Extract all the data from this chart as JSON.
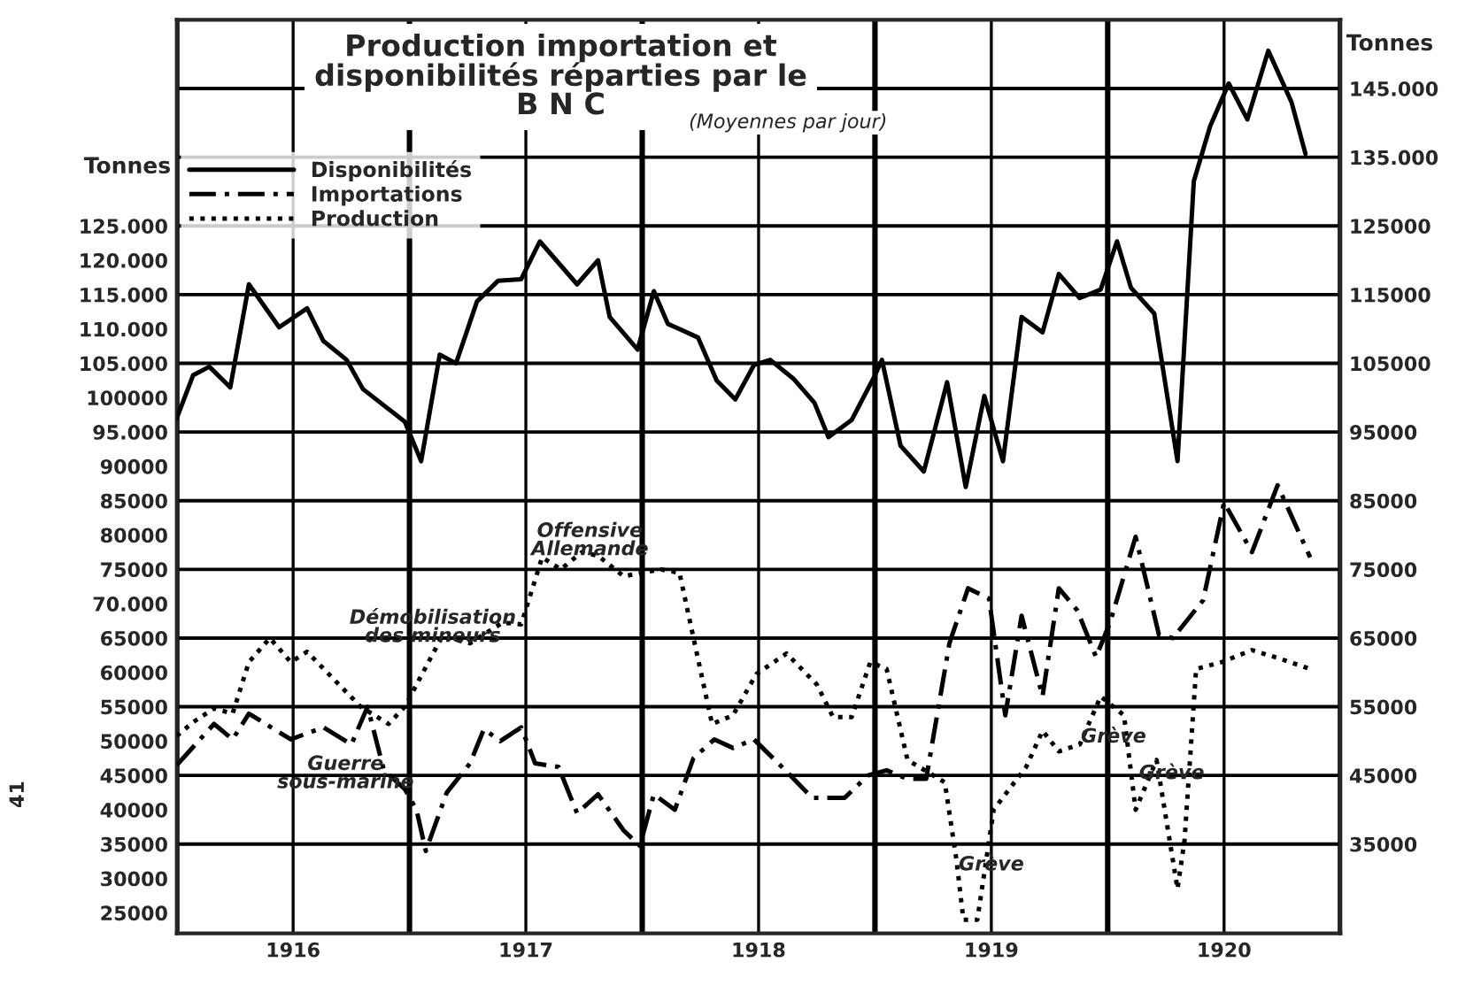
{
  "chart_data": {
    "type": "line",
    "title": "Production importation et\ndisponibilités réparties par le\nB N C",
    "subtitle": "(Moyennes par jour)",
    "ylabel": "Tonnes",
    "y2label": "Tonnes",
    "series": [
      {
        "name": "Disponibilités",
        "color": "#000000",
        "line_style": "solid",
        "x": [
          1916.0,
          1916.07,
          1916.14,
          1916.23,
          1916.31,
          1916.44,
          1916.56,
          1916.63,
          1916.73,
          1916.8,
          1916.98,
          1917.05,
          1917.13,
          1917.2,
          1917.29,
          1917.38,
          1917.48,
          1917.56,
          1917.72,
          1917.81,
          1917.86,
          1917.98,
          1918.05,
          1918.11,
          1918.24,
          1918.32,
          1918.4,
          1918.48,
          1918.55,
          1918.65,
          1918.74,
          1918.8,
          1918.9,
          1919.0,
          1919.03,
          1919.11,
          1919.21,
          1919.31,
          1919.39,
          1919.47,
          1919.55,
          1919.63,
          1919.72,
          1919.79,
          1919.88,
          1919.97,
          1920.04,
          1920.1,
          1920.2,
          1920.3,
          1920.37,
          1920.44,
          1920.52,
          1920.6,
          1920.69,
          1920.79,
          1920.85
        ],
        "values": [
          97000,
          103250,
          104500,
          101500,
          116500,
          110250,
          113000,
          108250,
          105500,
          101250,
          96500,
          90750,
          106250,
          105000,
          114000,
          117000,
          117250,
          122750,
          116500,
          120000,
          111750,
          107000,
          115500,
          110750,
          108750,
          102500,
          99750,
          104750,
          105500,
          102750,
          99250,
          94250,
          96750,
          103250,
          105500,
          93000,
          89250,
          102250,
          87000,
          100250,
          90750,
          111750,
          109500,
          118000,
          114500,
          115750,
          122750,
          116000,
          112250,
          90750,
          131500,
          139500,
          145750,
          140500,
          150500,
          143000,
          135500
        ]
      },
      {
        "name": "Importations",
        "color": "#000000",
        "line_style": "dashed",
        "x": [
          1916.0,
          1916.16,
          1916.24,
          1916.31,
          1916.49,
          1916.63,
          1916.75,
          1916.82,
          1916.89,
          1916.98,
          1917.03,
          1917.07,
          1917.16,
          1917.26,
          1917.32,
          1917.39,
          1917.48,
          1917.54,
          1917.64,
          1917.72,
          1917.81,
          1917.92,
          1917.99,
          1918.05,
          1918.14,
          1918.22,
          1918.31,
          1918.39,
          1918.48,
          1918.6,
          1918.73,
          1918.87,
          1918.97,
          1919.05,
          1919.14,
          1919.22,
          1919.32,
          1919.4,
          1919.49,
          1919.56,
          1919.63,
          1919.72,
          1919.79,
          1919.87,
          1919.95,
          1920.01,
          1920.12,
          1920.22,
          1920.28,
          1920.41,
          1920.5,
          1920.62,
          1920.73,
          1920.87
        ],
        "values": [
          46500,
          52500,
          50250,
          54000,
          50250,
          52000,
          49500,
          55000,
          45750,
          43000,
          40000,
          34000,
          42500,
          46750,
          51750,
          50000,
          52000,
          46750,
          46250,
          39500,
          42250,
          37000,
          34750,
          42250,
          40000,
          47500,
          50250,
          49000,
          50250,
          46250,
          41750,
          41750,
          45000,
          45750,
          44500,
          44500,
          64250,
          72250,
          70750,
          53750,
          68250,
          56500,
          72250,
          69000,
          62250,
          67250,
          79750,
          65500,
          65000,
          70500,
          84750,
          77500,
          87250,
          76750
        ]
      },
      {
        "name": "Production",
        "color": "#000000",
        "line_style": "dotted",
        "x": [
          1916.0,
          1916.07,
          1916.16,
          1916.24,
          1916.31,
          1916.4,
          1916.49,
          1916.56,
          1916.79,
          1916.91,
          1916.98,
          1917.14,
          1917.26,
          1917.4,
          1917.48,
          1917.57,
          1917.65,
          1917.74,
          1917.81,
          1917.92,
          1918.08,
          1918.16,
          1918.3,
          1918.39,
          1918.49,
          1918.62,
          1918.75,
          1918.82,
          1918.9,
          1918.98,
          1919.05,
          1919.14,
          1919.3,
          1919.35,
          1919.38,
          1919.44,
          1919.51,
          1919.65,
          1919.72,
          1919.79,
          1919.88,
          1919.97,
          1920.07,
          1920.12,
          1920.21,
          1920.3,
          1920.33,
          1920.38,
          1920.49,
          1920.62,
          1920.74,
          1920.87
        ],
        "values": [
          50750,
          52750,
          54750,
          54000,
          61500,
          65000,
          61500,
          63000,
          55000,
          52500,
          55000,
          65250,
          64250,
          67250,
          67000,
          76750,
          75000,
          77500,
          77000,
          74000,
          75000,
          74500,
          52500,
          53750,
          59750,
          62750,
          58250,
          53500,
          53500,
          61500,
          60500,
          47250,
          44000,
          32750,
          24000,
          24000,
          40000,
          46250,
          51500,
          48500,
          49500,
          56500,
          53750,
          40000,
          47250,
          28500,
          35500,
          60500,
          61500,
          63250,
          62000,
          60500
        ]
      }
    ],
    "xlim": [
      1916,
      1921
    ],
    "xticks": [
      {
        "value": 1916,
        "label": null
      },
      {
        "value": 1916.5,
        "label": "1916"
      },
      {
        "value": 1917,
        "label": null
      },
      {
        "value": 1917.5,
        "label": "1917"
      },
      {
        "value": 1918,
        "label": null
      },
      {
        "value": 1918.5,
        "label": "1918"
      },
      {
        "value": 1919,
        "label": null
      },
      {
        "value": 1919.5,
        "label": "1919"
      },
      {
        "value": 1920,
        "label": null
      },
      {
        "value": 1920.5,
        "label": "1920"
      },
      {
        "value": 1921,
        "label": null
      }
    ],
    "ylim": [
      22000,
      155000
    ],
    "yticks": [
      {
        "value": 25000,
        "label": "25000"
      },
      {
        "value": 30000,
        "label": "30000"
      },
      {
        "value": 35000,
        "label": "35000"
      },
      {
        "value": 40000,
        "label": "40000"
      },
      {
        "value": 45000,
        "label": "45000"
      },
      {
        "value": 50000,
        "label": "50000"
      },
      {
        "value": 55000,
        "label": "55000"
      },
      {
        "value": 60000,
        "label": "60000"
      },
      {
        "value": 65000,
        "label": "65000"
      },
      {
        "value": 70000,
        "label": "70.000"
      },
      {
        "value": 75000,
        "label": "75000"
      },
      {
        "value": 80000,
        "label": "80000"
      },
      {
        "value": 85000,
        "label": "85000"
      },
      {
        "value": 90000,
        "label": "90000"
      },
      {
        "value": 95000,
        "label": "95.000"
      },
      {
        "value": 100000,
        "label": "100000"
      },
      {
        "value": 105000,
        "label": "105.000"
      },
      {
        "value": 110000,
        "label": "110.000"
      },
      {
        "value": 115000,
        "label": "115.000"
      },
      {
        "value": 120000,
        "label": "120.000"
      },
      {
        "value": 125000,
        "label": "125.000"
      }
    ],
    "y2lim": [
      22000,
      155000
    ],
    "y2ticks": [
      {
        "value": 35000,
        "label": "35000"
      },
      {
        "value": 45000,
        "label": "45000"
      },
      {
        "value": 55000,
        "label": "55000"
      },
      {
        "value": 65000,
        "label": "65000"
      },
      {
        "value": 75000,
        "label": "75000"
      },
      {
        "value": 85000,
        "label": "85000"
      },
      {
        "value": 95000,
        "label": "95000"
      },
      {
        "value": 105000,
        "label": "105000"
      },
      {
        "value": 115000,
        "label": "115000"
      },
      {
        "value": 125000,
        "label": "125000"
      },
      {
        "value": 135000,
        "label": "135.000"
      },
      {
        "value": 145000,
        "label": "145.000"
      }
    ],
    "annotations": [
      "Démobilisation\ndes mineurs",
      "Offensive\nAllemande",
      "Guerre\nsous-marine",
      "Grève",
      "Grève",
      "Grève",
      "41"
    ],
    "grid": true,
    "legend": "top left",
    "marker": "none"
  }
}
